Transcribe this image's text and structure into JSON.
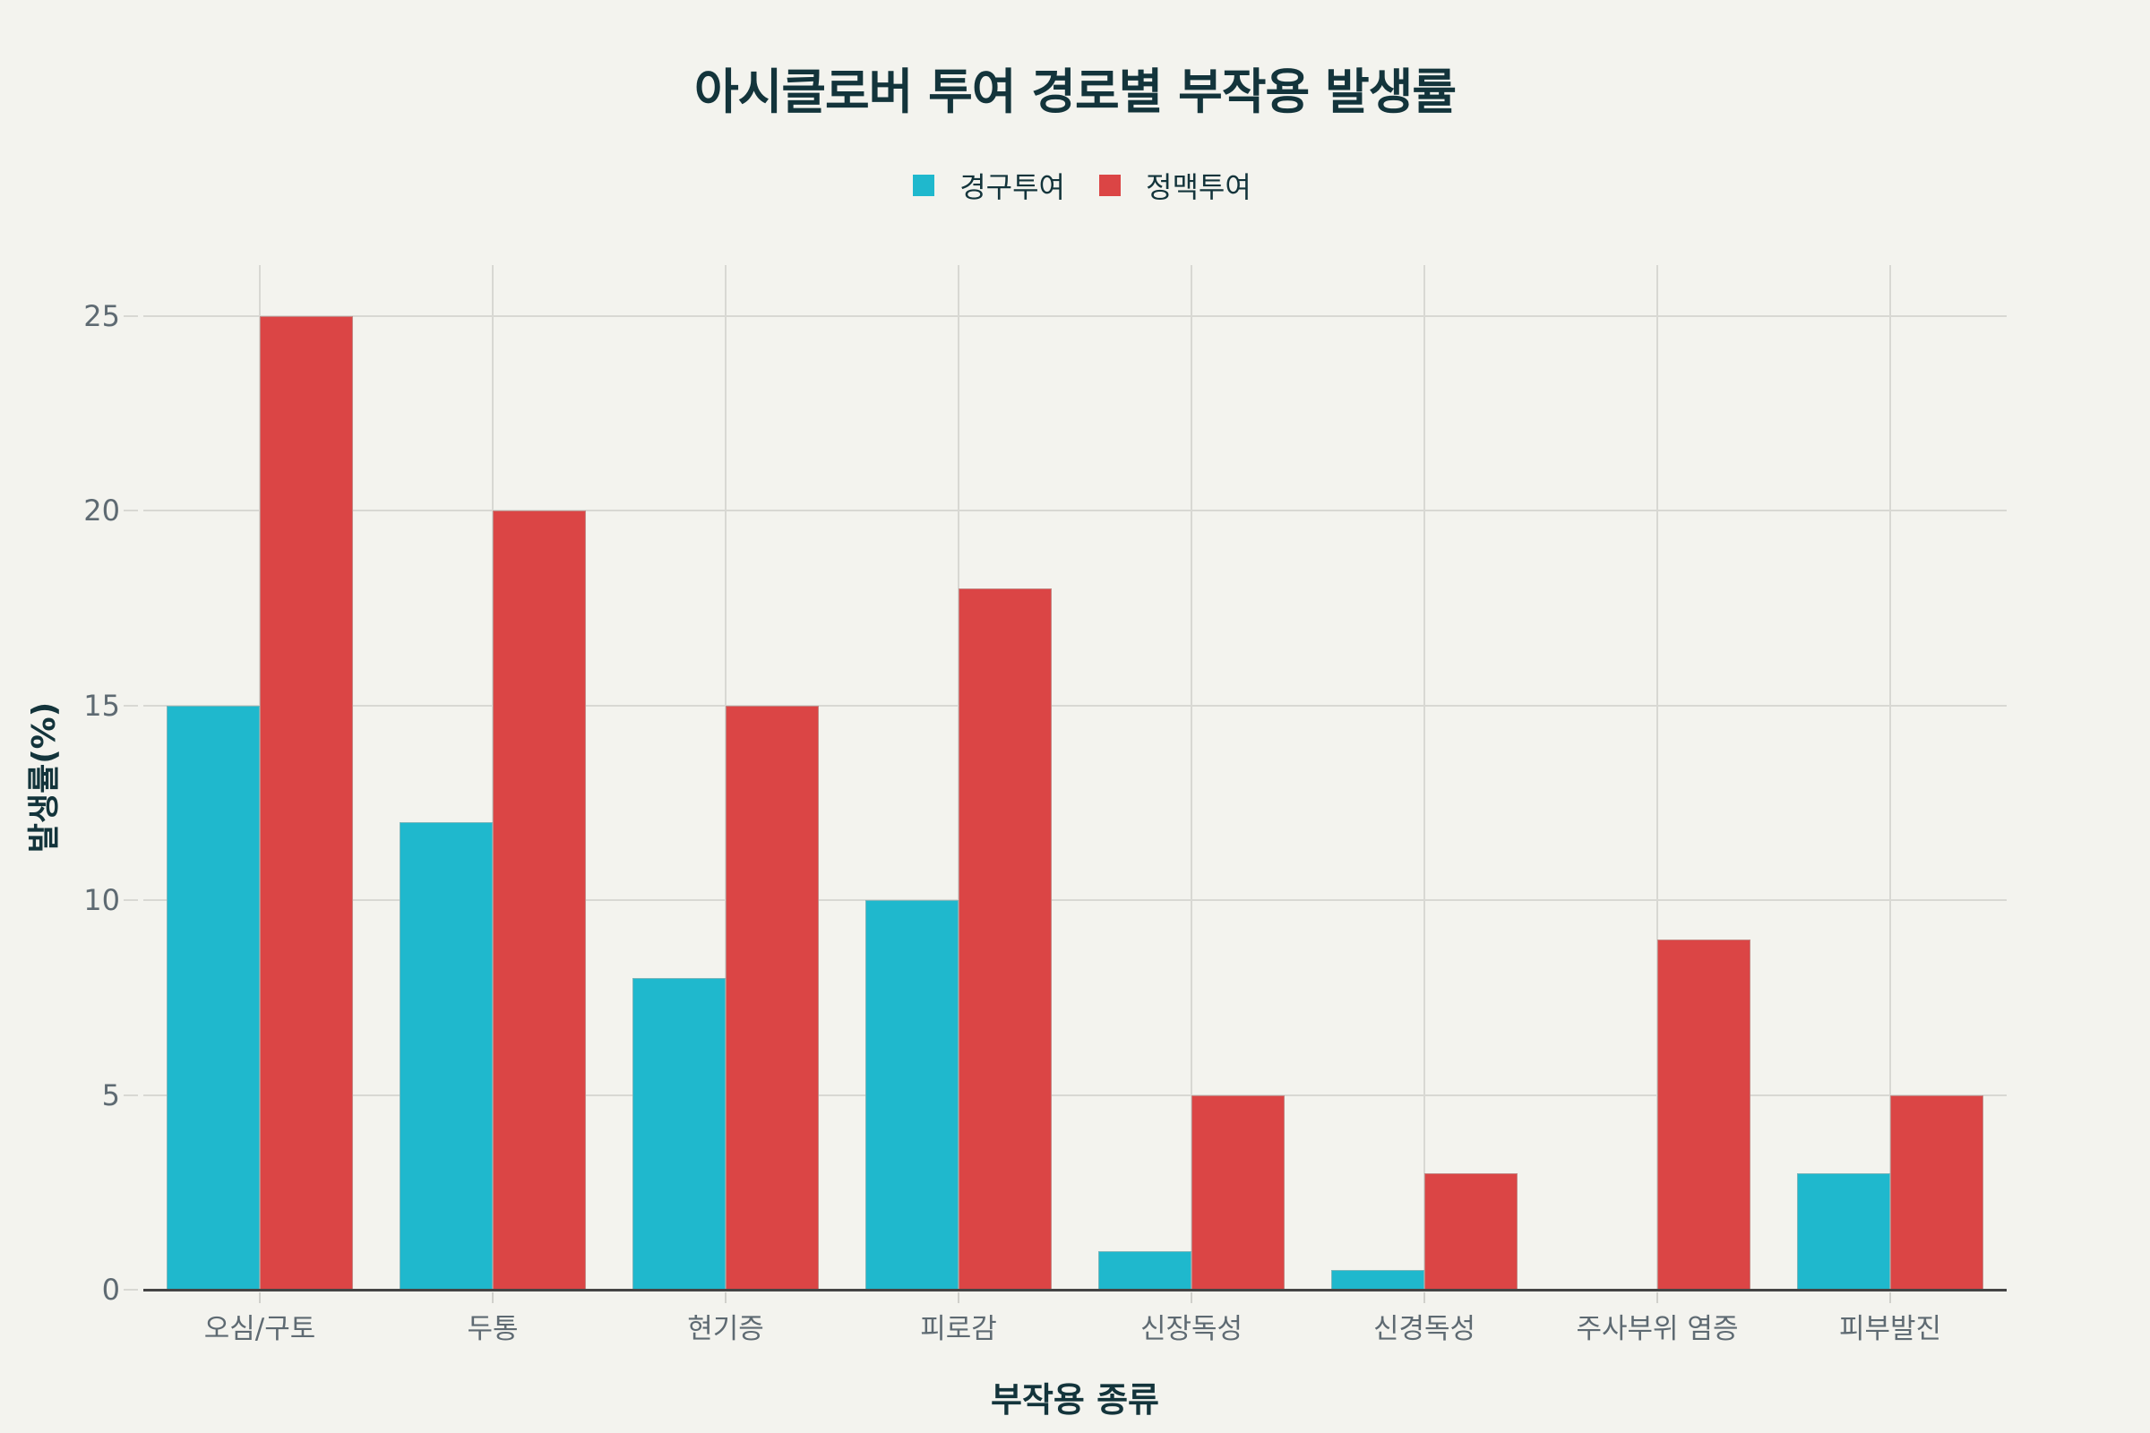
{
  "chart_data": {
    "type": "bar",
    "title": "아시클로버 투여 경로별 부작용 발생률",
    "xlabel": "부작용 종류",
    "ylabel": "발생률(%)",
    "categories": [
      "오심/구토",
      "두통",
      "현기증",
      "피로감",
      "신장독성",
      "신경독성",
      "주사부위 염증",
      "피부발진"
    ],
    "series": [
      {
        "name": "경구투여",
        "color": "#1FB8CD",
        "values": [
          15,
          12,
          8,
          10,
          1,
          0.5,
          0,
          3
        ]
      },
      {
        "name": "정맥투여",
        "color": "#DB4545",
        "values": [
          25,
          20,
          15,
          18,
          5,
          3,
          9,
          5
        ]
      }
    ],
    "ylim": [
      0,
      25
    ],
    "yticks": [
      0,
      5,
      10,
      15,
      20,
      25
    ],
    "grid": true,
    "legend_position": "top-center"
  }
}
